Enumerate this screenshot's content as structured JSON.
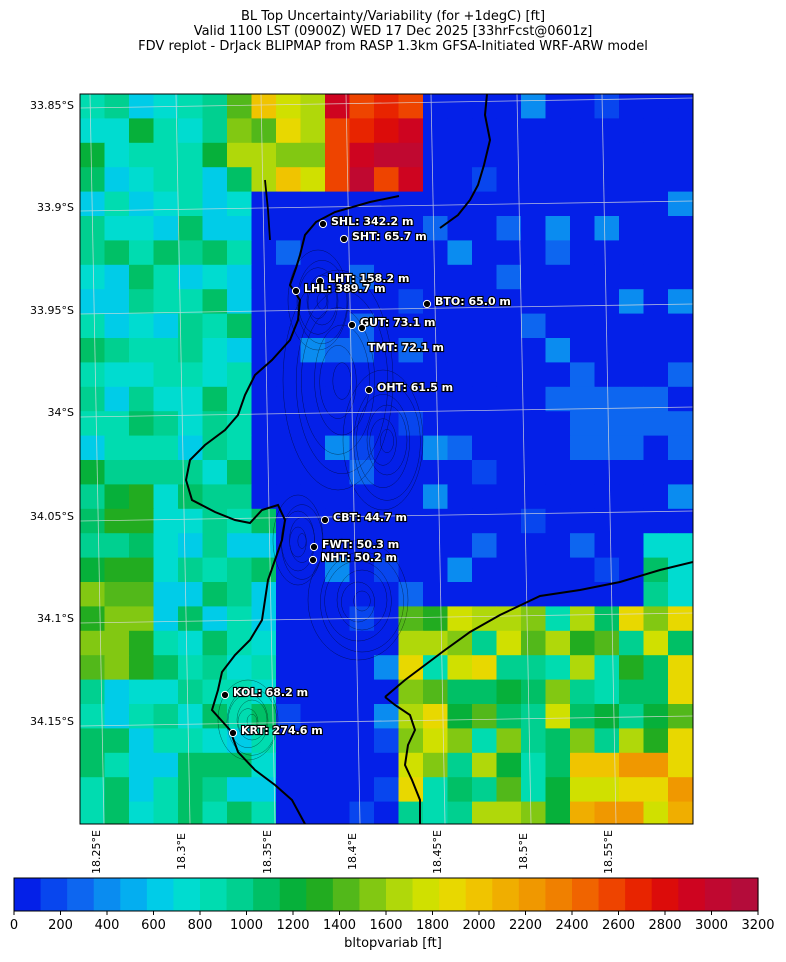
{
  "title": {
    "line1": "BL Top Uncertainty/Variability (for +1degC) [ft]",
    "line2": "Valid 1100 LST (0900Z) WED 17 Dec 2025 [33hrFcst@0601z]",
    "line3": "FDV replot - DrJack BLIPMAP from RASP 1.3km GFSA-Initiated WRF-ARW model"
  },
  "axes": {
    "lat_labels": [
      "33.85°S",
      "33.9°S",
      "33.95°S",
      "34°S",
      "34.05°S",
      "34.1°S",
      "34.15°S"
    ],
    "lon_labels": [
      "18.25°E",
      "18.3°E",
      "18.35°E",
      "18.4°E",
      "18.45°E",
      "18.5°E",
      "18.55°E"
    ]
  },
  "stations": [
    {
      "code": "SHL",
      "label": "SHL: 342.2 m"
    },
    {
      "code": "SHT",
      "label": "SHT: 65.7 m"
    },
    {
      "code": "LHT",
      "label": "LHT: 158.2 m"
    },
    {
      "code": "LHL",
      "label": "LHL: 389.7 m"
    },
    {
      "code": "BTO",
      "label": "BTO: 65.0 m"
    },
    {
      "code": "GUT",
      "label": "GUT: 73.1 m"
    },
    {
      "code": "TMT",
      "label": "TMT: 72.1 m"
    },
    {
      "code": "OHT",
      "label": "OHT: 61.5 m"
    },
    {
      "code": "CBT",
      "label": "CBT: 44.7 m"
    },
    {
      "code": "FWT",
      "label": "FWT: 50.3 m"
    },
    {
      "code": "NHT",
      "label": "NHT: 50.2 m"
    },
    {
      "code": "KOL",
      "label": "KOL: 68.2 m"
    },
    {
      "code": "KRT",
      "label": "KRT: 274.6 m"
    }
  ],
  "colorbar": {
    "label": "bltopvariab [ft]",
    "ticks": [
      "0",
      "200",
      "400",
      "600",
      "800",
      "1000",
      "1200",
      "1400",
      "1600",
      "1800",
      "2000",
      "2200",
      "2400",
      "2600",
      "2800",
      "3000",
      "3200"
    ],
    "colors": [
      "#0420e8",
      "#0846ee",
      "#0d66f0",
      "#0a8cf0",
      "#04aef0",
      "#00cce8",
      "#00dcd0",
      "#00dcb0",
      "#00d090",
      "#00c066",
      "#06b03a",
      "#22ac20",
      "#52b81a",
      "#82c812",
      "#b0d80a",
      "#d0e000",
      "#e8d800",
      "#f0c400",
      "#f0ae00",
      "#f09800",
      "#f08000",
      "#f06400",
      "#ee4400",
      "#e82400",
      "#dc0c0a",
      "#ce0420",
      "#c00830",
      "#b40c3a"
    ]
  }
}
